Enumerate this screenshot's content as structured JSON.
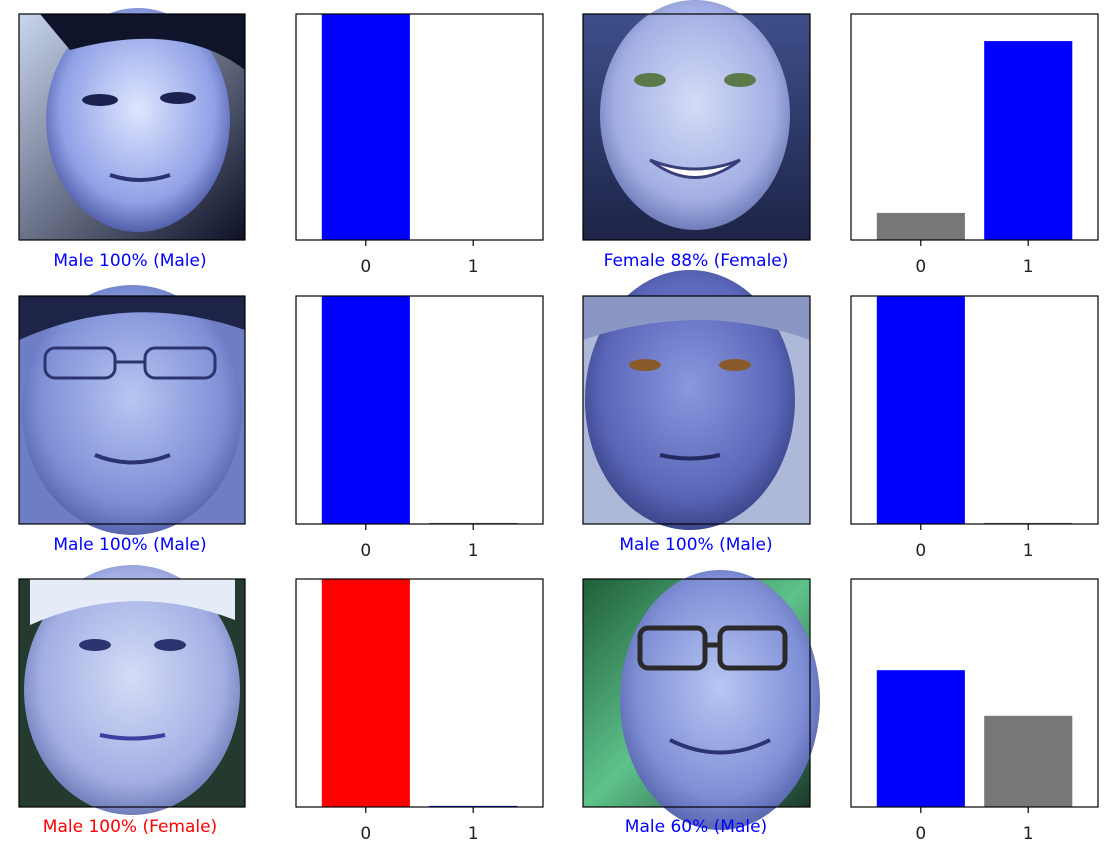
{
  "colors": {
    "correct": "#0000ff",
    "incorrect": "#ff0000",
    "other": "#777777",
    "frame": "#000000"
  },
  "chart_data": [
    {
      "type": "bar",
      "image_icon": "face-photo-icon",
      "caption": "Male 100% (Male)",
      "caption_color": "#0000ff",
      "categories": [
        "0",
        "1"
      ],
      "values": [
        1.0,
        0.0
      ],
      "bar_colors": [
        "#0000ff",
        "#777777"
      ],
      "ylim": [
        0,
        1
      ]
    },
    {
      "type": "bar",
      "image_icon": "face-photo-icon",
      "caption": "Female 88% (Female)",
      "caption_color": "#0000ff",
      "categories": [
        "0",
        "1"
      ],
      "values": [
        0.12,
        0.88
      ],
      "bar_colors": [
        "#777777",
        "#0000ff"
      ],
      "ylim": [
        0,
        1
      ]
    },
    {
      "type": "bar",
      "image_icon": "face-photo-icon",
      "caption": "Male 100% (Male)",
      "caption_color": "#0000ff",
      "categories": [
        "0",
        "1"
      ],
      "values": [
        1.0,
        0.005
      ],
      "bar_colors": [
        "#0000ff",
        "#777777"
      ],
      "ylim": [
        0,
        1
      ]
    },
    {
      "type": "bar",
      "image_icon": "face-photo-icon",
      "caption": "Male 100% (Male)",
      "caption_color": "#0000ff",
      "categories": [
        "0",
        "1"
      ],
      "values": [
        1.0,
        0.005
      ],
      "bar_colors": [
        "#0000ff",
        "#777777"
      ],
      "ylim": [
        0,
        1
      ]
    },
    {
      "type": "bar",
      "image_icon": "face-photo-icon",
      "caption": "Male 100% (Female)",
      "caption_color": "#ff0000",
      "categories": [
        "0",
        "1"
      ],
      "values": [
        1.0,
        0.005
      ],
      "bar_colors": [
        "#ff0000",
        "#0000ff"
      ],
      "ylim": [
        0,
        1
      ]
    },
    {
      "type": "bar",
      "image_icon": "face-photo-icon",
      "caption": "Male 60% (Male)",
      "caption_color": "#0000ff",
      "categories": [
        "0",
        "1"
      ],
      "values": [
        0.6,
        0.4
      ],
      "bar_colors": [
        "#0000ff",
        "#777777"
      ],
      "ylim": [
        0,
        1
      ]
    }
  ]
}
